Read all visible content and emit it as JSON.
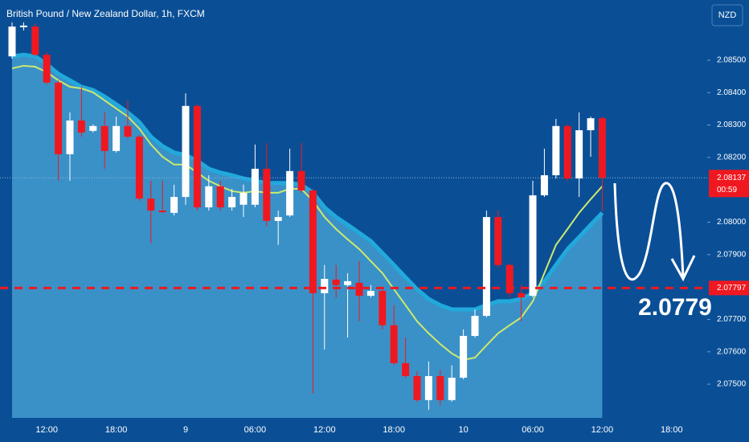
{
  "chart_data": {
    "type": "candlestick",
    "title": "British Pound / New Zealand Dollar, 1h, FXCM",
    "currency_button": "NZD",
    "open": [
      2.08512,
      2.08602,
      2.08604,
      2.08517,
      2.08431,
      2.0821,
      2.08314,
      2.08282,
      2.08297,
      2.0822,
      2.08297,
      2.08264,
      2.08073,
      2.08036,
      2.08029,
      2.08078,
      2.08359,
      2.08046,
      2.08111,
      2.08046,
      2.08054,
      2.08054,
      2.08165,
      2.08004,
      2.08021,
      2.08158,
      2.08098,
      2.07781,
      2.07823,
      2.07806,
      2.07813,
      2.07773,
      2.07788,
      2.07682,
      2.07565,
      2.07525,
      2.07451,
      2.07525,
      2.07451,
      2.0752,
      2.07649,
      2.07711,
      2.08016,
      2.07868,
      2.07781,
      2.07773,
      2.08083,
      2.08145,
      2.08297,
      2.08135,
      2.08284,
      2.08321
    ],
    "high": [
      2.08617,
      2.08617,
      2.08612,
      2.08525,
      2.08438,
      2.08339,
      2.08418,
      2.08302,
      2.08339,
      2.08326,
      2.08376,
      2.08269,
      2.08128,
      2.08128,
      2.08116,
      2.08398,
      2.08364,
      2.08145,
      2.08128,
      2.08103,
      2.08116,
      2.0824,
      2.08245,
      2.08036,
      2.08227,
      2.08245,
      2.08103,
      2.07868,
      2.07868,
      2.07843,
      2.0788,
      2.07806,
      2.07793,
      2.07744,
      2.07644,
      2.0754,
      2.0757,
      2.07545,
      2.07558,
      2.07669,
      2.07731,
      2.08036,
      2.08036,
      2.07873,
      2.07806,
      2.08128,
      2.08227,
      2.08319,
      2.08302,
      2.08339,
      2.08326,
      2.08326
    ],
    "low": [
      2.08505,
      2.08592,
      2.08512,
      2.08426,
      2.08128,
      2.08128,
      2.08264,
      2.08277,
      2.08165,
      2.08215,
      2.08259,
      2.08066,
      2.07935,
      2.08029,
      2.08021,
      2.08054,
      2.08036,
      2.08036,
      2.08036,
      2.08036,
      2.08016,
      2.08046,
      2.07987,
      2.0793,
      2.08016,
      2.08091,
      2.07471,
      2.07607,
      2.07768,
      2.07644,
      2.07694,
      2.07768,
      2.07669,
      2.07558,
      2.0752,
      2.07446,
      2.07421,
      2.07434,
      2.07446,
      2.07515,
      2.07644,
      2.07706,
      2.0786,
      2.07768,
      2.07694,
      2.07768,
      2.08078,
      2.08135,
      2.08128,
      2.08078,
      2.08202,
      2.08036
    ],
    "close": [
      2.08604,
      2.08607,
      2.08517,
      2.08431,
      2.0821,
      2.08314,
      2.08277,
      2.08297,
      2.0822,
      2.08297,
      2.08264,
      2.08073,
      2.08036,
      2.08031,
      2.08078,
      2.08359,
      2.08046,
      2.08111,
      2.08046,
      2.08078,
      2.08091,
      2.08165,
      2.08004,
      2.08016,
      2.08158,
      2.08098,
      2.07781,
      2.07825,
      2.07806,
      2.07818,
      2.07773,
      2.07788,
      2.07682,
      2.07565,
      2.07525,
      2.07451,
      2.07525,
      2.07451,
      2.0752,
      2.07649,
      2.07711,
      2.08016,
      2.07868,
      2.07781,
      2.07768,
      2.08083,
      2.08145,
      2.08297,
      2.08135,
      2.08284,
      2.08321,
      2.08137
    ],
    "ema": [
      2.08475,
      2.08483,
      2.0848,
      2.08463,
      2.08438,
      2.08418,
      2.08413,
      2.08401,
      2.08376,
      2.08351,
      2.08326,
      2.08289,
      2.0824,
      2.08202,
      2.08178,
      2.08178,
      2.08153,
      2.08128,
      2.08111,
      2.08096,
      2.08091,
      2.08096,
      2.08091,
      2.08091,
      2.08103,
      2.08103,
      2.08066,
      2.08016,
      2.07979,
      2.07947,
      2.07917,
      2.0788,
      2.07843,
      2.07793,
      2.07744,
      2.07694,
      2.07657,
      2.07624,
      2.07595,
      2.07575,
      2.07582,
      2.0762,
      2.07657,
      2.07682,
      2.07706,
      2.07756,
      2.07843,
      2.0793,
      2.07979,
      2.08029,
      2.08071,
      2.08111
    ],
    "band": [
      2.08512,
      2.08517,
      2.08512,
      2.08488,
      2.08458,
      2.08438,
      2.08418,
      2.08408,
      2.08388,
      2.08364,
      2.08339,
      2.08309,
      2.08264,
      2.08235,
      2.08215,
      2.08207,
      2.0819,
      2.08165,
      2.08153,
      2.08145,
      2.08135,
      2.08128,
      2.08121,
      2.08121,
      2.08121,
      2.08116,
      2.08091,
      2.08046,
      2.08016,
      2.07992,
      2.07967,
      2.07942,
      2.07905,
      2.07868,
      2.0783,
      2.07793,
      2.07763,
      2.07744,
      2.07731,
      2.07731,
      2.07731,
      2.07744,
      2.07756,
      2.07756,
      2.07763,
      2.07781,
      2.07818,
      2.07868,
      2.07917,
      2.07954,
      2.07992,
      2.08029
    ],
    "up_color": "#ffffff",
    "down_color": "#f01820",
    "ema_color": "#cde86e",
    "band_color": "#3a91c7",
    "band_line_color": "#22a9dc",
    "time_labels": [
      "12:00",
      "18:00",
      "9",
      "06:00",
      "12:00",
      "18:00",
      "10",
      "06:00",
      "12:00",
      "18:00"
    ],
    "ylim": [
      2.07396,
      2.08686
    ],
    "yticks": [
      {
        "value": 2.085,
        "label": "2.08500"
      },
      {
        "value": 2.084,
        "label": "2.08400"
      },
      {
        "value": 2.083,
        "label": "2.08300"
      },
      {
        "value": 2.082,
        "label": "2.08200"
      },
      {
        "value": 2.08,
        "label": "2.08000"
      },
      {
        "value": 2.079,
        "label": "2.07900"
      },
      {
        "value": 2.077,
        "label": "2.07700"
      },
      {
        "value": 2.076,
        "label": "2.07600"
      },
      {
        "value": 2.075,
        "label": "2.07500"
      }
    ],
    "last_price": 2.08137,
    "countdown": "00:59",
    "level": 2.07797,
    "annotation": "2.0779"
  }
}
